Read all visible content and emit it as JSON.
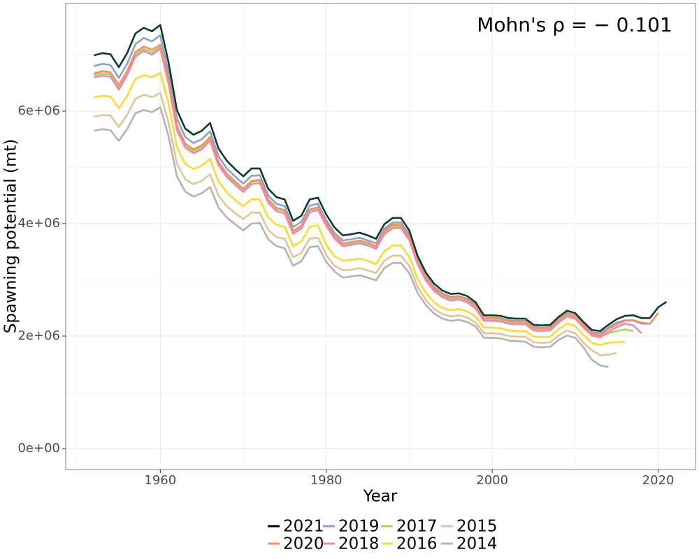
{
  "chart_data": {
    "type": "line",
    "annotation": "Mohn's  ρ = − 0.101",
    "x_label": "Year",
    "y_label": "Spawning potential (mt)",
    "x": [
      1952,
      1953,
      1954,
      1955,
      1956,
      1957,
      1958,
      1959,
      1960,
      1961,
      1962,
      1963,
      1964,
      1965,
      1966,
      1967,
      1968,
      1969,
      1970,
      1971,
      1972,
      1973,
      1974,
      1975,
      1976,
      1977,
      1978,
      1979,
      1980,
      1981,
      1982,
      1983,
      1984,
      1985,
      1986,
      1987,
      1988,
      1989,
      1990,
      1991,
      1992,
      1993,
      1994,
      1995,
      1996,
      1997,
      1998,
      1999,
      2000,
      2001,
      2002,
      2003,
      2004,
      2005,
      2006,
      2007,
      2008,
      2009,
      2010,
      2011,
      2012,
      2013,
      2014,
      2015,
      2016,
      2017,
      2018,
      2019,
      2020,
      2021
    ],
    "xlim": [
      1948.6,
      2024.5
    ],
    "xticks": [
      1960,
      1980,
      2000,
      2020
    ],
    "ylim": [
      -373000,
      7913000
    ],
    "yticks": [
      {
        "value": 0,
        "label": "0e+00"
      },
      {
        "value": 2000000,
        "label": "2e+06"
      },
      {
        "value": 4000000,
        "label": "4e+06"
      },
      {
        "value": 6000000,
        "label": "6e+06"
      }
    ],
    "grid": true,
    "minor_grid": true,
    "legend": "bottom",
    "series": [
      {
        "name": "2021",
        "color": "#0b3d2c",
        "values": [
          6990000.0,
          7030000.0,
          7010000.0,
          6780000.0,
          7030000.0,
          7380000.0,
          7480000.0,
          7420000.0,
          7530000.0,
          6860000.0,
          6020000.0,
          5690000.0,
          5580000.0,
          5650000.0,
          5790000.0,
          5340000.0,
          5120000.0,
          4970000.0,
          4840000.0,
          4980000.0,
          4980000.0,
          4620000.0,
          4470000.0,
          4430000.0,
          4050000.0,
          4140000.0,
          4430000.0,
          4460000.0,
          4160000.0,
          3930000.0,
          3790000.0,
          3810000.0,
          3840000.0,
          3790000.0,
          3730000.0,
          3990000.0,
          4100000.0,
          4100000.0,
          3880000.0,
          3430000.0,
          3130000.0,
          2930000.0,
          2810000.0,
          2750000.0,
          2760000.0,
          2710000.0,
          2600000.0,
          2370000.0,
          2370000.0,
          2360000.0,
          2320000.0,
          2310000.0,
          2310000.0,
          2200000.0,
          2190000.0,
          2200000.0,
          2340000.0,
          2450000.0,
          2410000.0,
          2250000.0,
          2110000.0,
          2090000.0,
          2200000.0,
          2300000.0,
          2360000.0,
          2370000.0,
          2320000.0,
          2320000.0,
          2510000.0,
          2610000.0
        ]
      },
      {
        "name": "2020",
        "color": "#fc8d62",
        "values": [
          6670000.0,
          6710000.0,
          6690000.0,
          6460000.0,
          6710000.0,
          7050000.0,
          7150000.0,
          7090000.0,
          7180000.0,
          6550000.0,
          5740000.0,
          5420000.0,
          5320000.0,
          5390000.0,
          5540000.0,
          5100000.0,
          4890000.0,
          4750000.0,
          4620000.0,
          4760000.0,
          4780000.0,
          4430000.0,
          4280000.0,
          4240000.0,
          3870000.0,
          3960000.0,
          4250000.0,
          4290000.0,
          4010000.0,
          3780000.0,
          3650000.0,
          3670000.0,
          3700000.0,
          3660000.0,
          3600000.0,
          3870000.0,
          3980000.0,
          3980000.0,
          3770000.0,
          3330000.0,
          3040000.0,
          2850000.0,
          2740000.0,
          2680000.0,
          2700000.0,
          2650000.0,
          2540000.0,
          2320000.0,
          2320000.0,
          2310000.0,
          2270000.0,
          2260000.0,
          2260000.0,
          2150000.0,
          2140000.0,
          2150000.0,
          2290000.0,
          2400000.0,
          2360000.0,
          2200000.0,
          2050000.0,
          2010000.0,
          2120000.0,
          2210000.0,
          2270000.0,
          2280000.0,
          2240000.0,
          2220000.0,
          2410000.0,
          null
        ]
      },
      {
        "name": "2019",
        "color": "#8da0cb",
        "values": [
          6800000.0,
          6840000.0,
          6820000.0,
          6590000.0,
          6840000.0,
          7190000.0,
          7300000.0,
          7240000.0,
          7350000.0,
          6680000.0,
          5870000.0,
          5540000.0,
          5430000.0,
          5500000.0,
          5640000.0,
          5200000.0,
          4980000.0,
          4840000.0,
          4710000.0,
          4850000.0,
          4860000.0,
          4500000.0,
          4350000.0,
          4310000.0,
          3940000.0,
          4030000.0,
          4320000.0,
          4350000.0,
          4060000.0,
          3830000.0,
          3700000.0,
          3720000.0,
          3750000.0,
          3700000.0,
          3650000.0,
          3910000.0,
          4020000.0,
          4020000.0,
          3810000.0,
          3360000.0,
          3070000.0,
          2870000.0,
          2760000.0,
          2700000.0,
          2710000.0,
          2660000.0,
          2560000.0,
          2330000.0,
          2330000.0,
          2320000.0,
          2280000.0,
          2270000.0,
          2270000.0,
          2160000.0,
          2150000.0,
          2160000.0,
          2300000.0,
          2410000.0,
          2370000.0,
          2210000.0,
          2070000.0,
          2050000.0,
          2150000.0,
          2240000.0,
          2280000.0,
          2280000.0,
          2220000.0,
          2220000.0,
          null,
          null
        ]
      },
      {
        "name": "2018",
        "color": "#e78ac3",
        "values": [
          6600000.0,
          6630000.0,
          6610000.0,
          6380000.0,
          6640000.0,
          6970000.0,
          7070000.0,
          7000000.0,
          7110000.0,
          6480000.0,
          5660000.0,
          5350000.0,
          5250000.0,
          5320000.0,
          5470000.0,
          5040000.0,
          4830000.0,
          4690000.0,
          4560000.0,
          4700000.0,
          4720000.0,
          4370000.0,
          4220000.0,
          4180000.0,
          3820000.0,
          3910000.0,
          4200000.0,
          4240000.0,
          3960000.0,
          3730000.0,
          3600000.0,
          3620000.0,
          3650000.0,
          3610000.0,
          3550000.0,
          3810000.0,
          3920000.0,
          3920000.0,
          3710000.0,
          3280000.0,
          2990000.0,
          2800000.0,
          2690000.0,
          2630000.0,
          2650000.0,
          2600000.0,
          2490000.0,
          2270000.0,
          2270000.0,
          2260000.0,
          2220000.0,
          2210000.0,
          2210000.0,
          2100000.0,
          2090000.0,
          2100000.0,
          2240000.0,
          2350000.0,
          2310000.0,
          2150000.0,
          2010000.0,
          1980000.0,
          2070000.0,
          2160000.0,
          2220000.0,
          2190000.0,
          2050000.0,
          null,
          null,
          null
        ]
      },
      {
        "name": "2017",
        "color": "#a6d854",
        "values": [
          6640000.0,
          6670000.0,
          6650000.0,
          6420000.0,
          6680000.0,
          7010000.0,
          7110000.0,
          7040000.0,
          7150000.0,
          6520000.0,
          5700000.0,
          5390000.0,
          5290000.0,
          5360000.0,
          5510000.0,
          5080000.0,
          4870000.0,
          4730000.0,
          4600000.0,
          4740000.0,
          4760000.0,
          4410000.0,
          4260000.0,
          4220000.0,
          3860000.0,
          3950000.0,
          4240000.0,
          4270000.0,
          3990000.0,
          3760000.0,
          3630000.0,
          3650000.0,
          3680000.0,
          3640000.0,
          3580000.0,
          3840000.0,
          3950000.0,
          3950000.0,
          3740000.0,
          3310000.0,
          3020000.0,
          2830000.0,
          2720000.0,
          2660000.0,
          2680000.0,
          2630000.0,
          2520000.0,
          2290000.0,
          2290000.0,
          2280000.0,
          2240000.0,
          2230000.0,
          2230000.0,
          2120000.0,
          2110000.0,
          2120000.0,
          2260000.0,
          2370000.0,
          2330000.0,
          2170000.0,
          2020000.0,
          1990000.0,
          2050000.0,
          2090000.0,
          2120000.0,
          2090000.0,
          null,
          null,
          null,
          null
        ]
      },
      {
        "name": "2016",
        "color": "#ffd92f",
        "values": [
          6240000.0,
          6270000.0,
          6260000.0,
          6050000.0,
          6270000.0,
          6570000.0,
          6640000.0,
          6600000.0,
          6680000.0,
          6130000.0,
          5360000.0,
          5060000.0,
          4970000.0,
          5030000.0,
          5150000.0,
          4750000.0,
          4560000.0,
          4420000.0,
          4310000.0,
          4430000.0,
          4430000.0,
          4110000.0,
          3980000.0,
          3940000.0,
          3600000.0,
          3680000.0,
          3940000.0,
          3970000.0,
          3620000.0,
          3420000.0,
          3340000.0,
          3350000.0,
          3380000.0,
          3340000.0,
          3280000.0,
          3510000.0,
          3610000.0,
          3610000.0,
          3410000.0,
          3020000.0,
          2770000.0,
          2600000.0,
          2500000.0,
          2460000.0,
          2480000.0,
          2440000.0,
          2350000.0,
          2150000.0,
          2150000.0,
          2140000.0,
          2100000.0,
          2090000.0,
          2090000.0,
          1990000.0,
          1980000.0,
          1990000.0,
          2120000.0,
          2220000.0,
          2180000.0,
          2020000.0,
          1880000.0,
          1840000.0,
          1880000.0,
          1890000.0,
          1900000.0,
          null,
          null,
          null,
          null,
          null
        ]
      },
      {
        "name": "2015",
        "color": "#e5c494",
        "values": [
          5900000.0,
          5930000.0,
          5920000.0,
          5720000.0,
          5930000.0,
          6220000.0,
          6290000.0,
          6250000.0,
          6320000.0,
          5790000.0,
          5070000.0,
          4790000.0,
          4700000.0,
          4760000.0,
          4880000.0,
          4500000.0,
          4310000.0,
          4190000.0,
          4080000.0,
          4200000.0,
          4190000.0,
          3890000.0,
          3760000.0,
          3730000.0,
          3400000.0,
          3480000.0,
          3730000.0,
          3750000.0,
          3440000.0,
          3250000.0,
          3170000.0,
          3180000.0,
          3210000.0,
          3170000.0,
          3120000.0,
          3340000.0,
          3430000.0,
          3430000.0,
          3250000.0,
          2880000.0,
          2640000.0,
          2480000.0,
          2390000.0,
          2350000.0,
          2370000.0,
          2330000.0,
          2240000.0,
          2050000.0,
          2050000.0,
          2040000.0,
          2000000.0,
          1990000.0,
          1990000.0,
          1890000.0,
          1880000.0,
          1890000.0,
          2010000.0,
          2100000.0,
          2050000.0,
          1880000.0,
          1750000.0,
          1660000.0,
          1670000.0,
          1700000.0,
          null,
          null,
          null,
          null,
          null,
          null
        ]
      },
      {
        "name": "2014",
        "color": "#b3b3b3",
        "values": [
          5650000.0,
          5680000.0,
          5660000.0,
          5470000.0,
          5680000.0,
          5960000.0,
          6020000.0,
          5980000.0,
          6070000.0,
          5550000.0,
          4840000.0,
          4570000.0,
          4480000.0,
          4540000.0,
          4650000.0,
          4290000.0,
          4110000.0,
          3990000.0,
          3880000.0,
          4000000.0,
          4010000.0,
          3720000.0,
          3600000.0,
          3560000.0,
          3250000.0,
          3330000.0,
          3580000.0,
          3600000.0,
          3320000.0,
          3150000.0,
          3040000.0,
          3060000.0,
          3080000.0,
          3040000.0,
          2990000.0,
          3210000.0,
          3300000.0,
          3300000.0,
          3120000.0,
          2770000.0,
          2550000.0,
          2400000.0,
          2310000.0,
          2270000.0,
          2290000.0,
          2250000.0,
          2170000.0,
          1970000.0,
          1970000.0,
          1960000.0,
          1920000.0,
          1910000.0,
          1900000.0,
          1810000.0,
          1800000.0,
          1810000.0,
          1930000.0,
          2010000.0,
          1970000.0,
          1800000.0,
          1580000.0,
          1480000.0,
          1450000.0,
          null,
          null,
          null,
          null,
          null,
          null,
          null
        ]
      }
    ]
  }
}
